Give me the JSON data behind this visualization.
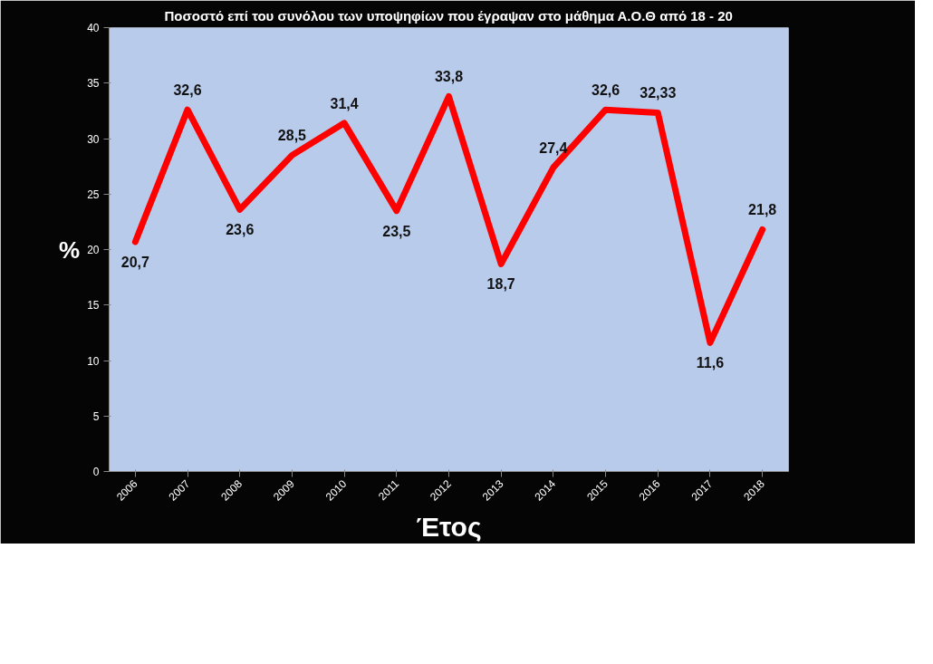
{
  "chart_data": {
    "type": "line",
    "title": "Ποσοστό επί του συνόλου των υποψηφίων που έγραψαν στο μάθημα Α.Ο.Θ από 18 - 20",
    "xlabel": "Έτος",
    "ylabel": "%",
    "categories": [
      "2006",
      "2007",
      "2008",
      "2009",
      "2010",
      "2011",
      "2012",
      "2013",
      "2014",
      "2015",
      "2016",
      "2017",
      "2018"
    ],
    "series": [
      {
        "color": "#ff0000",
        "values": [
          20.7,
          32.6,
          23.6,
          28.5,
          31.4,
          23.5,
          33.8,
          18.7,
          27.4,
          32.6,
          32.33,
          11.6,
          21.8
        ],
        "value_labels": [
          "20,7",
          "32,6",
          "23,6",
          "28,5",
          "31,4",
          "23,5",
          "33,8",
          "18,7",
          "27,4",
          "32,6",
          "32,33",
          "11,6",
          "21,8"
        ]
      }
    ],
    "ylim": [
      0,
      40
    ],
    "yticks": [
      0,
      5,
      10,
      15,
      20,
      25,
      30,
      35,
      40
    ],
    "grid": false,
    "marker": "none",
    "line_style": "solid"
  }
}
